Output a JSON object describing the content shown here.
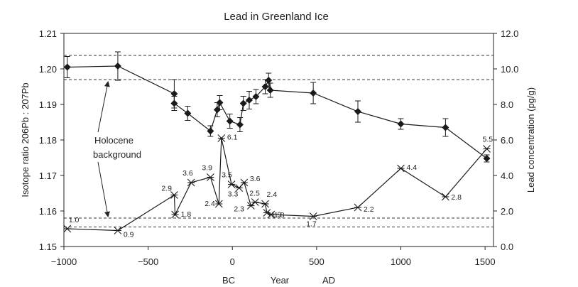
{
  "chart_data": {
    "type": "line",
    "title": "Lead in Greenland Ice",
    "xlabel": "Year",
    "xlabel_bc": "BC",
    "xlabel_ad": "AD",
    "ylabel_left": "Isotope ratio 206Pb : 207Pb",
    "ylabel_right": "Lead concentration (pg/g)",
    "xlim": [
      -1000,
      1550
    ],
    "ylim_left": [
      1.15,
      1.21
    ],
    "ylim_right": [
      0.0,
      12.0
    ],
    "x_ticks": [
      "−1000",
      "−500",
      "0",
      "500",
      "1000",
      "1500"
    ],
    "x_tick_values": [
      -1000,
      -500,
      0,
      500,
      1000,
      1500
    ],
    "y_left_ticks": [
      "1.15",
      "1.16",
      "1.17",
      "1.18",
      "1.19",
      "1.20",
      "1.21"
    ],
    "y_left_tick_values": [
      1.15,
      1.16,
      1.17,
      1.18,
      1.19,
      1.2,
      1.21
    ],
    "y_right_ticks": [
      "0.0",
      "2.0",
      "4.0",
      "6.0",
      "8.0",
      "10.0",
      "12.0"
    ],
    "y_right_tick_values": [
      0,
      2,
      4,
      6,
      8,
      10,
      12
    ],
    "grid": false,
    "series": [
      {
        "axis": "left",
        "marker": "diamond",
        "points": [
          {
            "x": -980,
            "y": 1.2005,
            "err": 0.003
          },
          {
            "x": -680,
            "y": 1.2008,
            "err": 0.004
          },
          {
            "x": -345,
            "y": 1.193,
            "err": 0.004
          },
          {
            "x": -345,
            "y": 1.1903,
            "err": 0.002
          },
          {
            "x": -265,
            "y": 1.1875,
            "err": 0.002
          },
          {
            "x": -130,
            "y": 1.1825,
            "err": 0.0015
          },
          {
            "x": -90,
            "y": 1.1885,
            "err": 0.002
          },
          {
            "x": -75,
            "y": 1.1905,
            "err": 0.002
          },
          {
            "x": -15,
            "y": 1.1853,
            "err": 0.002
          },
          {
            "x": 45,
            "y": 1.1843,
            "err": 0.002
          },
          {
            "x": 65,
            "y": 1.1903,
            "err": 0.002
          },
          {
            "x": 100,
            "y": 1.1912,
            "err": 0.0025
          },
          {
            "x": 140,
            "y": 1.1922,
            "err": 0.002
          },
          {
            "x": 195,
            "y": 1.195,
            "err": 0.002
          },
          {
            "x": 215,
            "y": 1.1968,
            "err": 0.002
          },
          {
            "x": 225,
            "y": 1.194,
            "err": 0.002
          },
          {
            "x": 480,
            "y": 1.1932,
            "err": 0.003
          },
          {
            "x": 745,
            "y": 1.188,
            "err": 0.003
          },
          {
            "x": 1000,
            "y": 1.1845,
            "err": 0.0015
          },
          {
            "x": 1265,
            "y": 1.1835,
            "err": 0.0025
          },
          {
            "x": 1510,
            "y": 1.1748,
            "err": 0.001
          }
        ]
      },
      {
        "axis": "right",
        "marker": "star",
        "points": [
          {
            "x": -980,
            "y": 1.0,
            "label": "1.0"
          },
          {
            "x": -680,
            "y": 0.9,
            "label": "0.9"
          },
          {
            "x": -345,
            "y": 2.9,
            "label": "2.9"
          },
          {
            "x": -340,
            "y": 1.8,
            "label": "1.8"
          },
          {
            "x": -245,
            "y": 3.6,
            "label": "3.6"
          },
          {
            "x": -130,
            "y": 3.9,
            "label": "3.9"
          },
          {
            "x": -80,
            "y": 2.4,
            "label": "2.4"
          },
          {
            "x": -65,
            "y": 6.1,
            "label": "6.1"
          },
          {
            "x": -5,
            "y": 3.5,
            "label": "3.5"
          },
          {
            "x": 40,
            "y": 3.3,
            "label": "3.3"
          },
          {
            "x": 70,
            "y": 3.6,
            "label": "3.6"
          },
          {
            "x": 110,
            "y": 2.3,
            "label": "2.3"
          },
          {
            "x": 135,
            "y": 2.5,
            "label": "2.5"
          },
          {
            "x": 195,
            "y": 2.4,
            "label": "2.4"
          },
          {
            "x": 205,
            "y": 1.9,
            "label": "1.9"
          },
          {
            "x": 230,
            "y": 1.8,
            "label": "1.8"
          },
          {
            "x": 480,
            "y": 1.7,
            "label": "1.7"
          },
          {
            "x": 745,
            "y": 2.2,
            "label": "2.2"
          },
          {
            "x": 1000,
            "y": 4.4,
            "label": "4.4"
          },
          {
            "x": 1265,
            "y": 2.8,
            "label": "2.8"
          },
          {
            "x": 1510,
            "y": 5.5,
            "label": "5.5"
          }
        ]
      }
    ],
    "reference_lines": [
      {
        "axis": "left",
        "y": 1.2038,
        "style": "dashed"
      },
      {
        "axis": "left",
        "y": 1.197,
        "style": "dashed"
      },
      {
        "axis": "right",
        "y": 1.6,
        "style": "dashed"
      },
      {
        "axis": "right",
        "y": 1.1,
        "style": "dashed"
      }
    ],
    "annotation": {
      "line1": "Holocene",
      "line2": "background"
    },
    "colors": {
      "ink": "#222222",
      "series": "#1a1a1a",
      "dash": "#333333"
    }
  }
}
